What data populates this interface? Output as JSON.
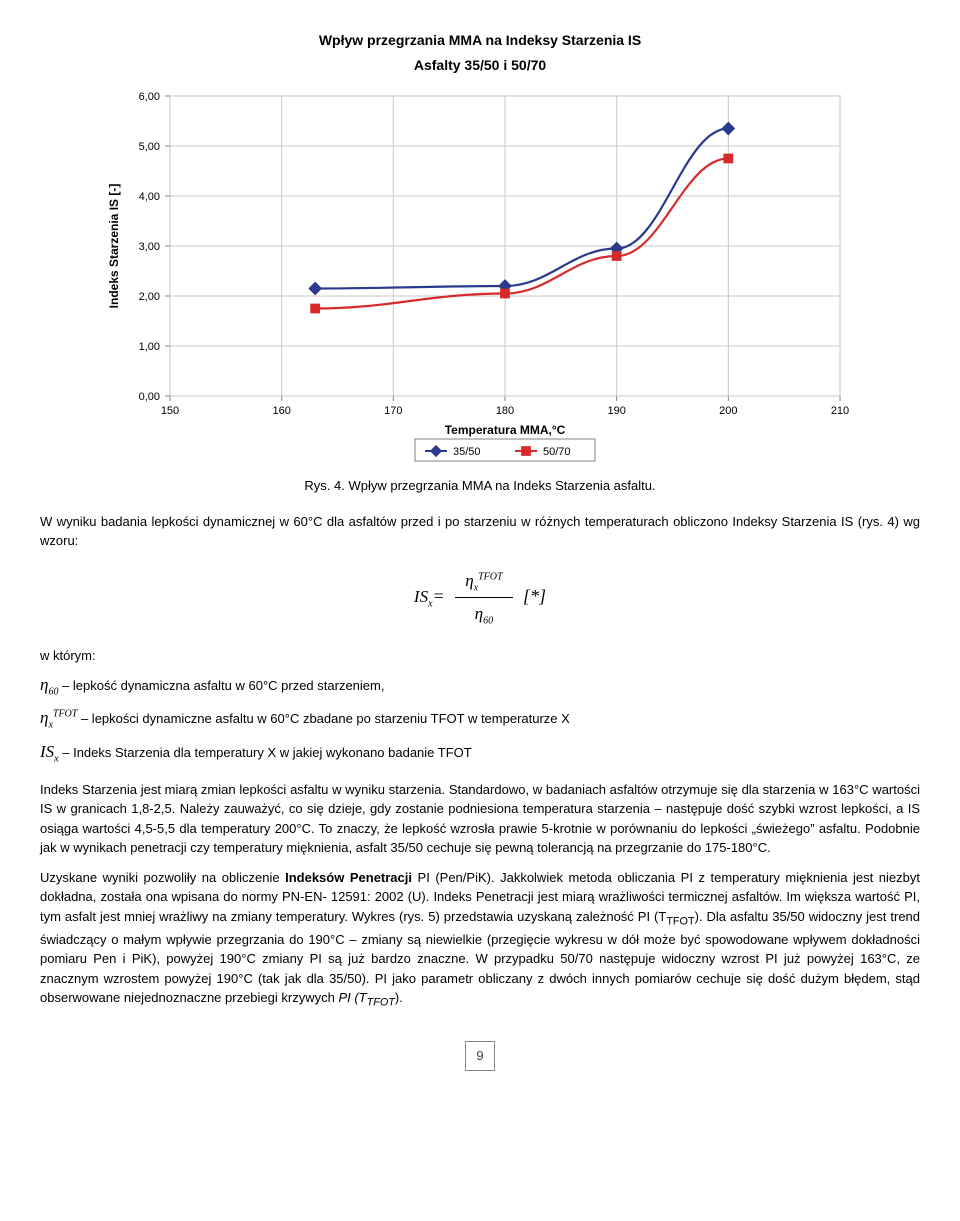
{
  "chart": {
    "type": "line-scatter",
    "title": "Wpływ przegrzania MMA na Indeksy Starzenia IS",
    "subtitle": "Asfalty 35/50 i 50/70",
    "x_label": "Temperatura MMA,°C",
    "y_label": "Indeks Starzenia IS [-]",
    "x_ticks": [
      150,
      160,
      170,
      180,
      190,
      200,
      210
    ],
    "y_ticks": [
      "0,00",
      "1,00",
      "2,00",
      "3,00",
      "4,00",
      "5,00",
      "6,00"
    ],
    "xlim": [
      150,
      210
    ],
    "ylim": [
      0,
      6
    ],
    "background_color": "#ffffff",
    "grid_color": "#c8c8c8",
    "tick_fontsize": 11,
    "label_fontsize": 12,
    "legend": {
      "items": [
        {
          "name": "35/50",
          "color": "#2a3a8c",
          "marker": "diamond"
        },
        {
          "name": "50/70",
          "color": "#d82a2a",
          "marker": "square"
        }
      ]
    },
    "series": [
      {
        "name": "35/50",
        "color": "#2a3a8c",
        "marker": "diamond",
        "marker_size": 8,
        "line_width": 2.2,
        "points": [
          {
            "x": 163,
            "y": 2.15
          },
          {
            "x": 180,
            "y": 2.2
          },
          {
            "x": 190,
            "y": 2.95
          },
          {
            "x": 200,
            "y": 5.35
          }
        ]
      },
      {
        "name": "50/70",
        "color": "#d82a2a",
        "marker": "square",
        "marker_size": 7,
        "line_width": 2.2,
        "points": [
          {
            "x": 163,
            "y": 1.75
          },
          {
            "x": 180,
            "y": 2.05
          },
          {
            "x": 190,
            "y": 2.8
          },
          {
            "x": 200,
            "y": 4.75
          }
        ]
      }
    ]
  },
  "caption": "Rys. 4. Wpływ przegrzania MMA na Indeks Starzenia asfaltu.",
  "para1": "W wyniku badania lepkości dynamicznej w 60°C dla asfaltów przed i po starzeniu w różnych temperaturach obliczono Indeksy Starzenia IS (rys. 4) wg wzoru:",
  "defs": {
    "intro": "w którym:",
    "eta60": "– lepkość dynamiczna asfaltu w 60°C przed starzeniem,",
    "etaTFOT": "– lepkości dynamiczne asfaltu w 60°C zbadane po starzeniu TFOT w temperaturze X",
    "ISx": "– Indeks Starzenia dla temperatury X w jakiej wykonano badanie TFOT"
  },
  "para2": "Indeks Starzenia jest miarą zmian lepkości asfaltu w wyniku starzenia. Standardowo, w badaniach asfaltów otrzymuje się dla starzenia w 163°C wartości IS w granicach 1,8-2,5. Należy zauważyć, co się dzieje, gdy zostanie podniesiona temperatura starzenia – następuje dość szybki wzrost lepkości, a IS osiąga wartości 4,5-5,5 dla temperatury 200°C. To znaczy, że lepkość wzrosła prawie 5-krotnie w porównaniu do lepkości „świeżego” asfaltu. Podobnie jak w wynikach penetracji czy temperatury mięknienia, asfalt 35/50 cechuje się pewną tolerancją na przegrzanie do 175-180°C.",
  "para3_part1": "Uzyskane wyniki pozwoliły na obliczenie ",
  "para3_bold1": "Indeksów Penetracji",
  "para3_part2": " PI (Pen/PiK). Jakkolwiek metoda obliczania PI z temperatury mięknienia jest niezbyt dokładna, została ona wpisana do normy PN-EN- 12591: 2002 (U). Indeks Penetracji jest miarą wrażliwości termicznej asfaltów. Im większa wartość PI, tym asfalt jest mniej wrażliwy na zmiany temperatury. Wykres (rys. 5) przedstawia uzyskaną zależność PI (T",
  "para3_sub1": "TFOT",
  "para3_part3": "). Dla asfaltu 35/50 widoczny jest trend świadczący o małym wpływie przegrzania do 190°C – zmiany są niewielkie (przegięcie wykresu w dół może być spowodowane wpływem dokładności pomiaru Pen i PiK), powyżej 190°C zmiany PI są już bardzo znaczne. W przypadku 50/70 następuje widoczny wzrost PI już powyżej 163°C, ze znacznym wzrostem powyżej 190°C (tak jak dla 35/50). PI jako parametr obliczany z dwóch innych pomiarów cechuje się dość dużym błędem, stąd obserwowane niejednoznaczne przebiegi krzywych ",
  "para3_ital": "PI (T",
  "para3_sub2": "TFOT",
  "para3_part4": ").",
  "page_number": "9"
}
